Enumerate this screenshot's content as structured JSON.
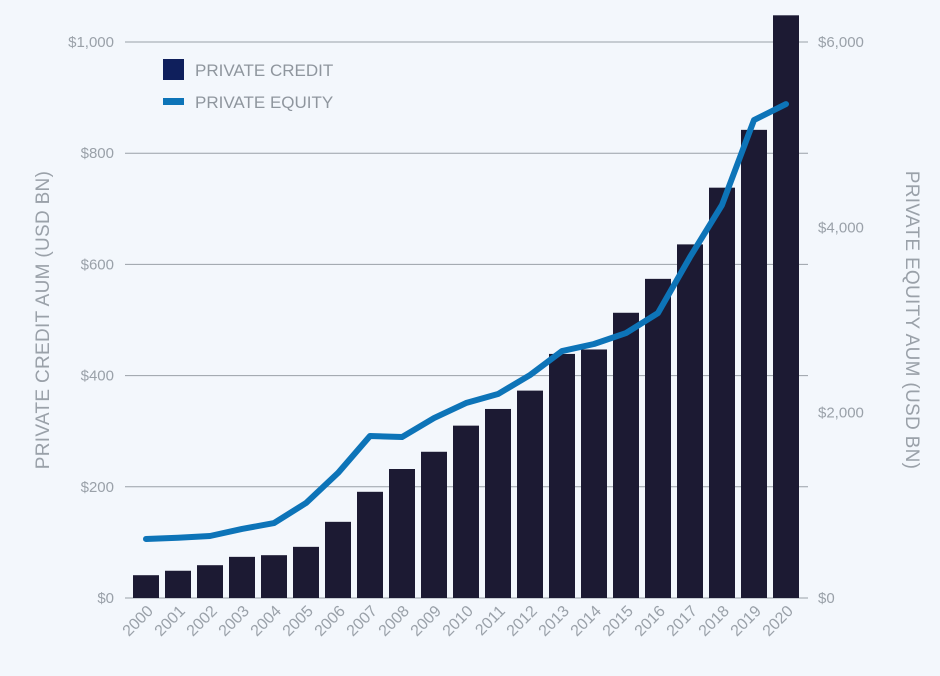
{
  "chart_data": {
    "type": "bar+line",
    "title": "",
    "categories": [
      "2000",
      "2001",
      "2002",
      "2003",
      "2004",
      "2005",
      "2006",
      "2007",
      "2008",
      "2009",
      "2010",
      "2011",
      "2012",
      "2013",
      "2014",
      "2015",
      "2016",
      "2017",
      "2018",
      "2019",
      "2020"
    ],
    "series": [
      {
        "name": "PRIVATE CREDIT",
        "type": "bar",
        "axis": "left",
        "color": "#1c1a33",
        "legend_color": "#0f1f5c",
        "values": [
          41,
          49,
          59,
          74,
          77,
          92,
          137,
          191,
          232,
          263,
          310,
          340,
          373,
          439,
          447,
          513,
          574,
          636,
          738,
          842,
          1048
        ]
      },
      {
        "name": "PRIVATE EQUITY",
        "type": "line",
        "axis": "right",
        "color": "#0d74b8",
        "values": [
          637,
          650,
          669,
          745,
          809,
          1025,
          1349,
          1748,
          1737,
          1942,
          2104,
          2201,
          2406,
          2665,
          2741,
          2859,
          3075,
          3679,
          4241,
          5158,
          5330
        ]
      }
    ],
    "ylabel": "PRIVATE CREDIT AUM (USD BN)",
    "ylabel_right": "PRIVATE EQUITY AUM (USD BN)",
    "xlabel": "",
    "ylim": [
      0,
      1000
    ],
    "ylim_right": [
      0,
      6000
    ],
    "yticks": [
      "$0",
      "$200",
      "$400",
      "$600",
      "$800",
      "$1,000"
    ],
    "yticks_right": [
      "$0",
      "$2,000",
      "$4,000",
      "$6,000"
    ],
    "grid": true,
    "legend_position": "top-left"
  }
}
